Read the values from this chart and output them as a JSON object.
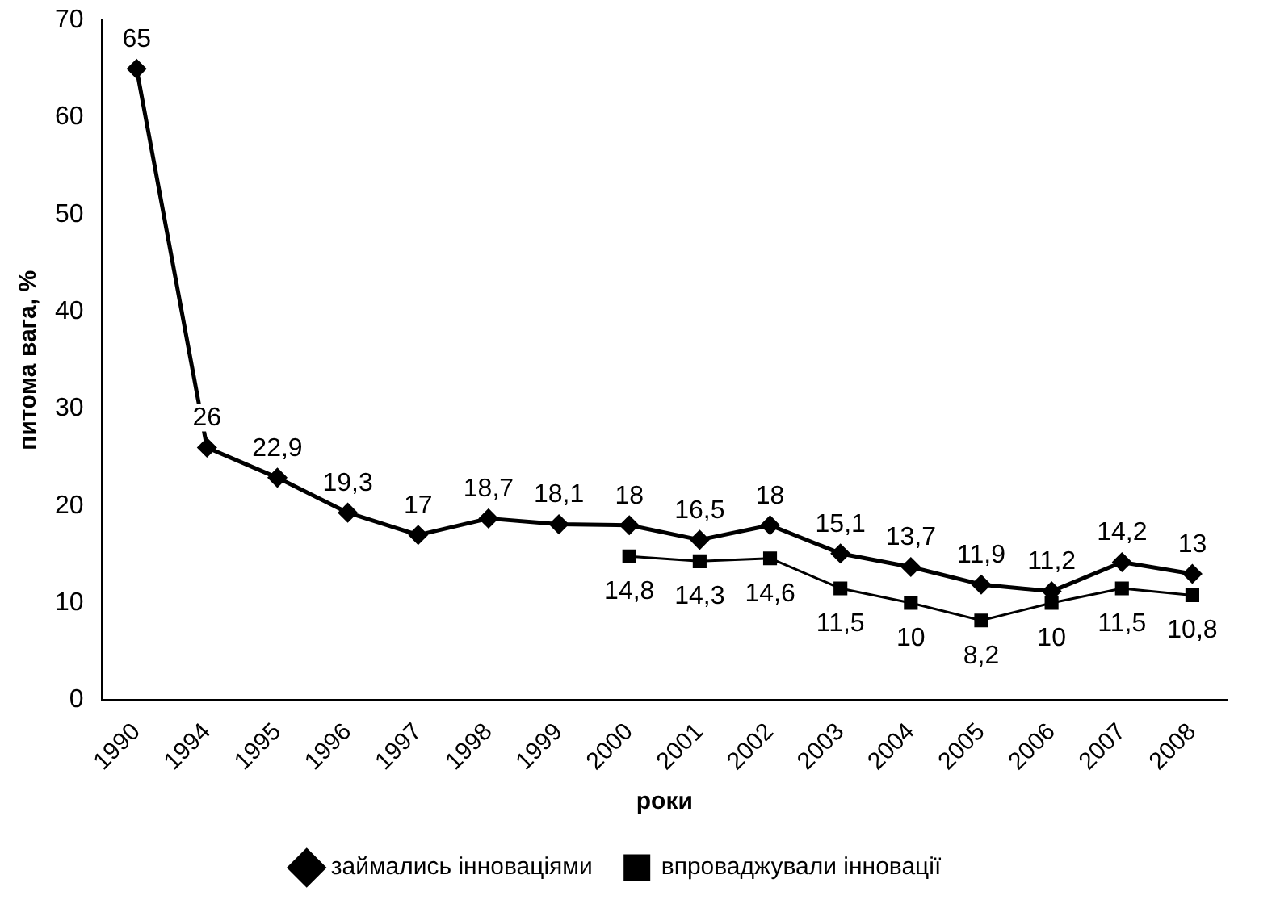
{
  "chart_data": {
    "type": "line",
    "xlabel": "роки",
    "ylabel": "питома вага, %",
    "categories": [
      "1990",
      "1994",
      "1995",
      "1996",
      "1997",
      "1998",
      "1999",
      "2000",
      "2001",
      "2002",
      "2003",
      "2004",
      "2005",
      "2006",
      "2007",
      "2008"
    ],
    "series": [
      {
        "name": "займались інноваціями",
        "color": "#000000",
        "marker": "diamond",
        "values": [
          65,
          26,
          22.9,
          19.3,
          17,
          18.7,
          18.1,
          18,
          16.5,
          18,
          15.1,
          13.7,
          11.9,
          11.2,
          14.2,
          13
        ],
        "value_labels": [
          "65",
          "26",
          "22,9",
          "19,3",
          "17",
          "18,7",
          "18,1",
          "18",
          "16,5",
          "18",
          "15,1",
          "13,7",
          "11,9",
          "11,2",
          "14,2",
          "13"
        ]
      },
      {
        "name": "впроваджували інновації",
        "color": "#000000",
        "marker": "square",
        "values": [
          null,
          null,
          null,
          null,
          null,
          null,
          null,
          14.8,
          14.3,
          14.6,
          11.5,
          10,
          8.2,
          10,
          11.5,
          10.8
        ],
        "value_labels": [
          null,
          null,
          null,
          null,
          null,
          null,
          null,
          "14,8",
          "14,3",
          "14,6",
          "11,5",
          "10",
          "8,2",
          "10",
          "11,5",
          "10,8"
        ]
      }
    ],
    "ylim": [
      0,
      70
    ],
    "yticks": [
      0,
      10,
      20,
      30,
      40,
      50,
      60,
      70
    ],
    "grid": false,
    "legend": "bottom",
    "line_style": "solid"
  }
}
